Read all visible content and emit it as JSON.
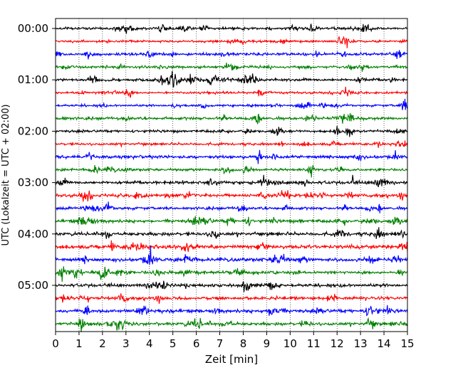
{
  "chart_data": {
    "type": "line",
    "title": "",
    "xlabel": "Zeit  [min]",
    "ylabel": "UTC (Lokalzeit = UTC + 02:00)",
    "xlim": [
      0,
      15
    ],
    "x_ticks": [
      "0",
      "1",
      "2",
      "3",
      "4",
      "5",
      "6",
      "7",
      "8",
      "9",
      "10",
      "11",
      "12",
      "13",
      "14",
      "15"
    ],
    "y_tick_labels": [
      "00:00",
      "01:00",
      "02:00",
      "03:00",
      "04:00",
      "05:00"
    ],
    "grid": "vertical dotted lines at every minute",
    "trace_interval_minutes": 15,
    "trace_colors": [
      "#000000",
      "#ff0000",
      "#0000ff",
      "#008000"
    ],
    "series": [
      {
        "start": "00:00",
        "color": "#000000",
        "amplitude": 0.9
      },
      {
        "start": "00:15",
        "color": "#ff0000",
        "amplitude": 0.8
      },
      {
        "start": "00:30",
        "color": "#0000ff",
        "amplitude": 1.0
      },
      {
        "start": "00:45",
        "color": "#008000",
        "amplitude": 0.9
      },
      {
        "start": "01:00",
        "color": "#000000",
        "amplitude": 1.0
      },
      {
        "start": "01:15",
        "color": "#ff0000",
        "amplitude": 0.8
      },
      {
        "start": "01:30",
        "color": "#0000ff",
        "amplitude": 0.8
      },
      {
        "start": "01:45",
        "color": "#008000",
        "amplitude": 1.0
      },
      {
        "start": "02:00",
        "color": "#000000",
        "amplitude": 0.9
      },
      {
        "start": "02:15",
        "color": "#ff0000",
        "amplitude": 0.9
      },
      {
        "start": "02:30",
        "color": "#0000ff",
        "amplitude": 1.1
      },
      {
        "start": "02:45",
        "color": "#008000",
        "amplitude": 0.9
      },
      {
        "start": "03:00",
        "color": "#000000",
        "amplitude": 1.1
      },
      {
        "start": "03:15",
        "color": "#ff0000",
        "amplitude": 1.1
      },
      {
        "start": "03:30",
        "color": "#0000ff",
        "amplitude": 1.0
      },
      {
        "start": "03:45",
        "color": "#008000",
        "amplitude": 1.1
      },
      {
        "start": "04:00",
        "color": "#000000",
        "amplitude": 1.2
      },
      {
        "start": "04:15",
        "color": "#ff0000",
        "amplitude": 1.3
      },
      {
        "start": "04:30",
        "color": "#0000ff",
        "amplitude": 1.2
      },
      {
        "start": "04:45",
        "color": "#008000",
        "amplitude": 1.1
      },
      {
        "start": "05:00",
        "color": "#000000",
        "amplitude": 1.1
      },
      {
        "start": "05:15",
        "color": "#ff0000",
        "amplitude": 1.1
      },
      {
        "start": "05:30",
        "color": "#0000ff",
        "amplitude": 1.2
      },
      {
        "start": "05:45",
        "color": "#008000",
        "amplitude": 1.1
      }
    ]
  }
}
